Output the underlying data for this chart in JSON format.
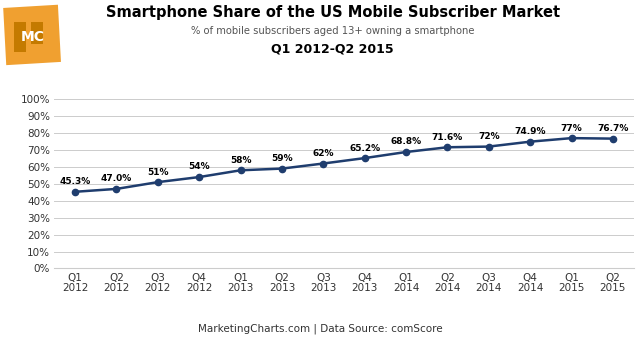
{
  "title": "Smartphone Share of the US Mobile Subscriber Market",
  "subtitle": "% of mobile subscribers aged 13+ owning a smartphone",
  "period_label": "Q1 2012-Q2 2015",
  "footer": "MarketingCharts.com | Data Source: comScore",
  "x_labels": [
    "Q1\n2012",
    "Q2\n2012",
    "Q3\n2012",
    "Q4\n2012",
    "Q1\n2013",
    "Q2\n2013",
    "Q3\n2013",
    "Q4\n2013",
    "Q1\n2014",
    "Q2\n2014",
    "Q3\n2014",
    "Q4\n2014",
    "Q1\n2015",
    "Q2\n2015"
  ],
  "values": [
    45.3,
    47.0,
    51.0,
    54.0,
    58.0,
    59.0,
    62.0,
    65.2,
    68.8,
    71.6,
    72.0,
    74.9,
    77.0,
    76.7
  ],
  "point_labels": [
    "45.3%",
    "47.0%",
    "51%",
    "54%",
    "58%",
    "59%",
    "62%",
    "65.2%",
    "68.8%",
    "71.6%",
    "72%",
    "74.9%",
    "77%",
    "76.7%"
  ],
  "line_color": "#1f3d6e",
  "marker_color": "#1f3d6e",
  "bg_color": "#ffffff",
  "plot_bg_color": "#ffffff",
  "grid_color": "#cccccc",
  "footer_bg": "#d9d9d9",
  "title_color": "#000000",
  "logo_bg": "#f0a500",
  "ylim": [
    0,
    100
  ],
  "yticks": [
    0,
    10,
    20,
    30,
    40,
    50,
    60,
    70,
    80,
    90,
    100
  ]
}
